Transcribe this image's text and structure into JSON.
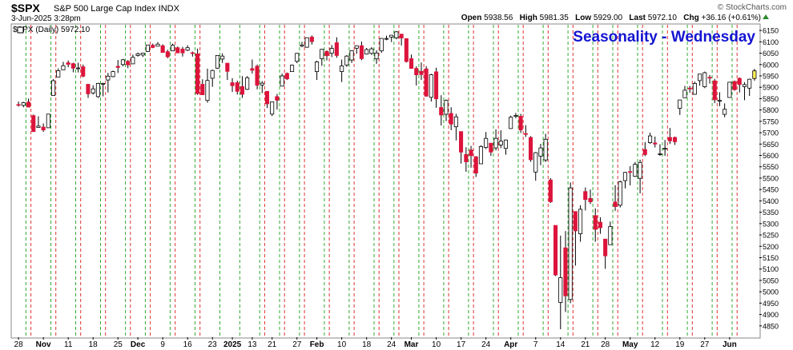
{
  "header": {
    "symbol": "$SPX",
    "description": "S&P 500 Large Cap Index  INDX",
    "watermark": "© StockCharts.com",
    "datetime": "3-Jun-2025 3:28pm",
    "open_label": "Open",
    "open_value": "5938.56",
    "high_label": "High",
    "high_value": "5981.35",
    "low_label": "Low",
    "low_value": "5929.00",
    "last_label": "Last",
    "last_value": "5972.10",
    "chg_label": "Chg",
    "chg_value": "+36.16 (+0.61%)"
  },
  "chart_data": {
    "type": "candlestick",
    "title": "Seasonality - Wednesday",
    "legend": "$SPX (Daily) 5972.10",
    "ylim": [
      4800,
      6175
    ],
    "y_ticks": [
      4850,
      4900,
      4950,
      5000,
      5050,
      5100,
      5150,
      5200,
      5250,
      5300,
      5350,
      5400,
      5450,
      5500,
      5550,
      5600,
      5650,
      5700,
      5750,
      5800,
      5850,
      5900,
      5950,
      6000,
      6050,
      6100,
      6150
    ],
    "x_tick_labels": [
      "28",
      "Nov",
      "11",
      "18",
      "25",
      "Dec",
      "9",
      "16",
      "23",
      "2025",
      "13",
      "21",
      "27",
      "Feb",
      "10",
      "18",
      "24",
      "Mar",
      "10",
      "17",
      "24",
      "Apr",
      "7",
      "14",
      "21",
      "28",
      "May",
      "12",
      "19",
      "27",
      "Jun"
    ],
    "grid": "dashed vertical lines: green before Wednesday sessions, red after Wednesday sessions",
    "colors": {
      "up": "#ffffff",
      "down": "#dc143c",
      "outline": "#000000",
      "grid_red": "#dd3333",
      "grid_green": "#33aa33",
      "title": "#1414d2",
      "last_highlight": "#ffef5a"
    },
    "candles": [
      {
        "d": "2024-10-28",
        "o": 5824,
        "h": 5837,
        "l": 5815,
        "c": 5823
      },
      {
        "d": "2024-10-29",
        "o": 5820,
        "h": 5836,
        "l": 5812,
        "c": 5832
      },
      {
        "d": "2024-10-30",
        "o": 5835,
        "h": 5850,
        "l": 5812,
        "c": 5813
      },
      {
        "d": "2024-10-31",
        "o": 5775,
        "h": 5780,
        "l": 5703,
        "c": 5705
      },
      {
        "d": "2024-11-01",
        "o": 5723,
        "h": 5772,
        "l": 5723,
        "c": 5729
      },
      {
        "d": "2024-11-04",
        "o": 5725,
        "h": 5741,
        "l": 5704,
        "c": 5712
      },
      {
        "d": "2024-11-05",
        "o": 5722,
        "h": 5783,
        "l": 5722,
        "c": 5782
      },
      {
        "d": "2024-11-06",
        "o": 5864,
        "h": 5936,
        "l": 5864,
        "c": 5929
      },
      {
        "d": "2024-11-07",
        "o": 5945,
        "h": 5983,
        "l": 5945,
        "c": 5973
      },
      {
        "d": "2024-11-08",
        "o": 5977,
        "h": 6012,
        "l": 5977,
        "c": 5995
      },
      {
        "d": "2024-11-11",
        "o": 6008,
        "h": 6018,
        "l": 5988,
        "c": 6001
      },
      {
        "d": "2024-11-12",
        "o": 6004,
        "h": 6008,
        "l": 5966,
        "c": 5984
      },
      {
        "d": "2024-11-13",
        "o": 5985,
        "h": 6008,
        "l": 5965,
        "c": 5985
      },
      {
        "d": "2024-11-14",
        "o": 5990,
        "h": 6000,
        "l": 5944,
        "c": 5949
      },
      {
        "d": "2024-11-15",
        "o": 5913,
        "h": 5915,
        "l": 5853,
        "c": 5871
      },
      {
        "d": "2024-11-18",
        "o": 5875,
        "h": 5909,
        "l": 5868,
        "c": 5893
      },
      {
        "d": "2024-11-19",
        "o": 5859,
        "h": 5920,
        "l": 5853,
        "c": 5917
      },
      {
        "d": "2024-11-20",
        "o": 5917,
        "h": 5920,
        "l": 5860,
        "c": 5917
      },
      {
        "d": "2024-11-21",
        "o": 5932,
        "h": 5963,
        "l": 5877,
        "c": 5949
      },
      {
        "d": "2024-11-22",
        "o": 5947,
        "h": 5973,
        "l": 5944,
        "c": 5969
      },
      {
        "d": "2024-11-25",
        "o": 5992,
        "h": 6020,
        "l": 5963,
        "c": 5987
      },
      {
        "d": "2024-11-26",
        "o": 6000,
        "h": 6025,
        "l": 5992,
        "c": 6021
      },
      {
        "d": "2024-11-27",
        "o": 6014,
        "h": 6020,
        "l": 5984,
        "c": 5999
      },
      {
        "d": "2024-11-29",
        "o": 6003,
        "h": 6044,
        "l": 6003,
        "c": 6032
      },
      {
        "d": "2024-12-02",
        "o": 6040,
        "h": 6053,
        "l": 6035,
        "c": 6047
      },
      {
        "d": "2024-12-03",
        "o": 6042,
        "h": 6052,
        "l": 6033,
        "c": 6050
      },
      {
        "d": "2024-12-04",
        "o": 6057,
        "h": 6087,
        "l": 6055,
        "c": 6086
      },
      {
        "d": "2024-12-05",
        "o": 6085,
        "h": 6092,
        "l": 6072,
        "c": 6075
      },
      {
        "d": "2024-12-06",
        "o": 6081,
        "h": 6099,
        "l": 6080,
        "c": 6090
      },
      {
        "d": "2024-12-09",
        "o": 6083,
        "h": 6089,
        "l": 6053,
        "c": 6053
      },
      {
        "d": "2024-12-10",
        "o": 6057,
        "h": 6065,
        "l": 6028,
        "c": 6034
      },
      {
        "d": "2024-12-11",
        "o": 6060,
        "h": 6092,
        "l": 6060,
        "c": 6085
      },
      {
        "d": "2024-12-12",
        "o": 6074,
        "h": 6079,
        "l": 6051,
        "c": 6051
      },
      {
        "d": "2024-12-13",
        "o": 6068,
        "h": 6078,
        "l": 6035,
        "c": 6051
      },
      {
        "d": "2024-12-16",
        "o": 6063,
        "h": 6085,
        "l": 6059,
        "c": 6074
      },
      {
        "d": "2024-12-17",
        "o": 6052,
        "h": 6057,
        "l": 6035,
        "c": 6050
      },
      {
        "d": "2024-12-18",
        "o": 6047,
        "h": 6070,
        "l": 5867,
        "c": 5872
      },
      {
        "d": "2024-12-19",
        "o": 5913,
        "h": 5935,
        "l": 5866,
        "c": 5867
      },
      {
        "d": "2024-12-20",
        "o": 5842,
        "h": 5982,
        "l": 5832,
        "c": 5930
      },
      {
        "d": "2024-12-23",
        "o": 5940,
        "h": 5978,
        "l": 5902,
        "c": 5974
      },
      {
        "d": "2024-12-24",
        "o": 5984,
        "h": 6041,
        "l": 5981,
        "c": 6040
      },
      {
        "d": "2024-12-26",
        "o": 6024,
        "h": 6049,
        "l": 6007,
        "c": 6037
      },
      {
        "d": "2024-12-27",
        "o": 6006,
        "h": 6007,
        "l": 5932,
        "c": 5970
      },
      {
        "d": "2024-12-30",
        "o": 5920,
        "h": 5940,
        "l": 5879,
        "c": 5907
      },
      {
        "d": "2024-12-31",
        "o": 5920,
        "h": 5929,
        "l": 5868,
        "c": 5882
      },
      {
        "d": "2025-01-02",
        "o": 5903,
        "h": 5949,
        "l": 5853,
        "c": 5869
      },
      {
        "d": "2025-01-03",
        "o": 5891,
        "h": 5949,
        "l": 5888,
        "c": 5942
      },
      {
        "d": "2025-01-06",
        "o": 5982,
        "h": 6022,
        "l": 5960,
        "c": 5975
      },
      {
        "d": "2025-01-07",
        "o": 5993,
        "h": 6000,
        "l": 5891,
        "c": 5909
      },
      {
        "d": "2025-01-08",
        "o": 5910,
        "h": 5927,
        "l": 5874,
        "c": 5918
      },
      {
        "d": "2025-01-10",
        "o": 5882,
        "h": 5882,
        "l": 5809,
        "c": 5827
      },
      {
        "d": "2025-01-13",
        "o": 5782,
        "h": 5837,
        "l": 5773,
        "c": 5836
      },
      {
        "d": "2025-01-14",
        "o": 5859,
        "h": 5871,
        "l": 5802,
        "c": 5843
      },
      {
        "d": "2025-01-15",
        "o": 5905,
        "h": 5960,
        "l": 5905,
        "c": 5950
      },
      {
        "d": "2025-01-16",
        "o": 5961,
        "h": 5965,
        "l": 5932,
        "c": 5937
      },
      {
        "d": "2025-01-17",
        "o": 5969,
        "h": 6000,
        "l": 5969,
        "c": 5997
      },
      {
        "d": "2025-01-21",
        "o": 6014,
        "h": 6051,
        "l": 6006,
        "c": 6049
      },
      {
        "d": "2025-01-22",
        "o": 6081,
        "h": 6100,
        "l": 6076,
        "c": 6086
      },
      {
        "d": "2025-01-23",
        "o": 6076,
        "h": 6118,
        "l": 6074,
        "c": 6118
      },
      {
        "d": "2025-01-24",
        "o": 6121,
        "h": 6128,
        "l": 6088,
        "c": 6101
      },
      {
        "d": "2025-01-27",
        "o": 5969,
        "h": 6017,
        "l": 5932,
        "c": 6012
      },
      {
        "d": "2025-01-28",
        "o": 6026,
        "h": 6069,
        "l": 5994,
        "c": 6067
      },
      {
        "d": "2025-01-29",
        "o": 6058,
        "h": 6062,
        "l": 6018,
        "c": 6039
      },
      {
        "d": "2025-01-30",
        "o": 6050,
        "h": 6086,
        "l": 6033,
        "c": 6071
      },
      {
        "d": "2025-01-31",
        "o": 6096,
        "h": 6120,
        "l": 6030,
        "c": 6040
      },
      {
        "d": "2025-02-03",
        "o": 5969,
        "h": 6022,
        "l": 5923,
        "c": 5994
      },
      {
        "d": "2025-02-04",
        "o": 5998,
        "h": 6042,
        "l": 5990,
        "c": 6037
      },
      {
        "d": "2025-02-05",
        "o": 6020,
        "h": 6062,
        "l": 6007,
        "c": 6061
      },
      {
        "d": "2025-02-06",
        "o": 6072,
        "h": 6084,
        "l": 6047,
        "c": 6083
      },
      {
        "d": "2025-02-07",
        "o": 6083,
        "h": 6101,
        "l": 6019,
        "c": 6026
      },
      {
        "d": "2025-02-10",
        "o": 6046,
        "h": 6073,
        "l": 6044,
        "c": 6066
      },
      {
        "d": "2025-02-11",
        "o": 6049,
        "h": 6076,
        "l": 6042,
        "c": 6069
      },
      {
        "d": "2025-02-12",
        "o": 6025,
        "h": 6063,
        "l": 6003,
        "c": 6051
      },
      {
        "d": "2025-02-13",
        "o": 6060,
        "h": 6116,
        "l": 6052,
        "c": 6115
      },
      {
        "d": "2025-02-14",
        "o": 6115,
        "h": 6127,
        "l": 6107,
        "c": 6115
      },
      {
        "d": "2025-02-18",
        "o": 6121,
        "h": 6129,
        "l": 6099,
        "c": 6129
      },
      {
        "d": "2025-02-19",
        "o": 6118,
        "h": 6147,
        "l": 6111,
        "c": 6144
      },
      {
        "d": "2025-02-20",
        "o": 6134,
        "h": 6134,
        "l": 6084,
        "c": 6117
      },
      {
        "d": "2025-02-21",
        "o": 6114,
        "h": 6115,
        "l": 6009,
        "c": 6013
      },
      {
        "d": "2025-02-24",
        "o": 6026,
        "h": 6044,
        "l": 5983,
        "c": 5983
      },
      {
        "d": "2025-02-25",
        "o": 5983,
        "h": 5992,
        "l": 5908,
        "c": 5955
      },
      {
        "d": "2025-02-26",
        "o": 5970,
        "h": 6009,
        "l": 5932,
        "c": 5956
      },
      {
        "d": "2025-02-27",
        "o": 5981,
        "h": 5993,
        "l": 5858,
        "c": 5861
      },
      {
        "d": "2025-02-28",
        "o": 5856,
        "h": 5959,
        "l": 5837,
        "c": 5955
      },
      {
        "d": "2025-03-03",
        "o": 5968,
        "h": 5986,
        "l": 5810,
        "c": 5849
      },
      {
        "d": "2025-03-04",
        "o": 5811,
        "h": 5865,
        "l": 5732,
        "c": 5778
      },
      {
        "d": "2025-03-05",
        "o": 5781,
        "h": 5846,
        "l": 5751,
        "c": 5842
      },
      {
        "d": "2025-03-06",
        "o": 5785,
        "h": 5812,
        "l": 5711,
        "c": 5738
      },
      {
        "d": "2025-03-07",
        "o": 5726,
        "h": 5783,
        "l": 5666,
        "c": 5770
      },
      {
        "d": "2025-03-10",
        "o": 5705,
        "h": 5706,
        "l": 5564,
        "c": 5615
      },
      {
        "d": "2025-03-11",
        "o": 5604,
        "h": 5636,
        "l": 5528,
        "c": 5572
      },
      {
        "d": "2025-03-12",
        "o": 5624,
        "h": 5642,
        "l": 5546,
        "c": 5599
      },
      {
        "d": "2025-03-13",
        "o": 5594,
        "h": 5597,
        "l": 5505,
        "c": 5522
      },
      {
        "d": "2025-03-14",
        "o": 5563,
        "h": 5645,
        "l": 5563,
        "c": 5639
      },
      {
        "d": "2025-03-17",
        "o": 5635,
        "h": 5703,
        "l": 5628,
        "c": 5675
      },
      {
        "d": "2025-03-18",
        "o": 5654,
        "h": 5655,
        "l": 5598,
        "c": 5615
      },
      {
        "d": "2025-03-19",
        "o": 5633,
        "h": 5715,
        "l": 5622,
        "c": 5675
      },
      {
        "d": "2025-03-20",
        "o": 5646,
        "h": 5711,
        "l": 5632,
        "c": 5663
      },
      {
        "d": "2025-03-21",
        "o": 5631,
        "h": 5670,
        "l": 5603,
        "c": 5668
      },
      {
        "d": "2025-03-24",
        "o": 5718,
        "h": 5775,
        "l": 5718,
        "c": 5768
      },
      {
        "d": "2025-03-25",
        "o": 5775,
        "h": 5787,
        "l": 5764,
        "c": 5776
      },
      {
        "d": "2025-03-26",
        "o": 5772,
        "h": 5783,
        "l": 5699,
        "c": 5712
      },
      {
        "d": "2025-03-27",
        "o": 5696,
        "h": 5733,
        "l": 5681,
        "c": 5693
      },
      {
        "d": "2025-03-28",
        "o": 5679,
        "h": 5685,
        "l": 5572,
        "c": 5581
      },
      {
        "d": "2025-03-31",
        "o": 5527,
        "h": 5615,
        "l": 5489,
        "c": 5612
      },
      {
        "d": "2025-04-01",
        "o": 5597,
        "h": 5651,
        "l": 5557,
        "c": 5633
      },
      {
        "d": "2025-04-02",
        "o": 5580,
        "h": 5695,
        "l": 5571,
        "c": 5671
      },
      {
        "d": "2025-04-03",
        "o": 5492,
        "h": 5500,
        "l": 5391,
        "c": 5396
      },
      {
        "d": "2025-04-04",
        "o": 5292,
        "h": 5292,
        "l": 5069,
        "c": 5074
      },
      {
        "d": "2025-04-07",
        "o": 4953,
        "h": 5247,
        "l": 4835,
        "c": 5062
      },
      {
        "d": "2025-04-08",
        "o": 5193,
        "h": 5267,
        "l": 4911,
        "c": 4982
      },
      {
        "d": "2025-04-09",
        "o": 4966,
        "h": 5481,
        "l": 4950,
        "c": 5457
      },
      {
        "d": "2025-04-10",
        "o": 5353,
        "h": 5353,
        "l": 5115,
        "c": 5268
      },
      {
        "d": "2025-04-11",
        "o": 5255,
        "h": 5381,
        "l": 5220,
        "c": 5363
      },
      {
        "d": "2025-04-14",
        "o": 5441,
        "h": 5459,
        "l": 5358,
        "c": 5406
      },
      {
        "d": "2025-04-15",
        "o": 5411,
        "h": 5450,
        "l": 5386,
        "c": 5396
      },
      {
        "d": "2025-04-16",
        "o": 5335,
        "h": 5367,
        "l": 5220,
        "c": 5275
      },
      {
        "d": "2025-04-17",
        "o": 5306,
        "h": 5328,
        "l": 5255,
        "c": 5282
      },
      {
        "d": "2025-04-21",
        "o": 5232,
        "h": 5232,
        "l": 5101,
        "c": 5158
      },
      {
        "d": "2025-04-22",
        "o": 5207,
        "h": 5309,
        "l": 5207,
        "c": 5287
      },
      {
        "d": "2025-04-23",
        "o": 5395,
        "h": 5469,
        "l": 5356,
        "c": 5375
      },
      {
        "d": "2025-04-24",
        "o": 5381,
        "h": 5489,
        "l": 5371,
        "c": 5484
      },
      {
        "d": "2025-04-25",
        "o": 5489,
        "h": 5528,
        "l": 5455,
        "c": 5525
      },
      {
        "d": "2025-04-28",
        "o": 5529,
        "h": 5553,
        "l": 5468,
        "c": 5528
      },
      {
        "d": "2025-04-29",
        "o": 5508,
        "h": 5571,
        "l": 5505,
        "c": 5561
      },
      {
        "d": "2025-04-30",
        "o": 5499,
        "h": 5581,
        "l": 5433,
        "c": 5569
      },
      {
        "d": "2025-05-01",
        "o": 5626,
        "h": 5659,
        "l": 5597,
        "c": 5604
      },
      {
        "d": "2025-05-02",
        "o": 5656,
        "h": 5700,
        "l": 5651,
        "c": 5686
      },
      {
        "d": "2025-05-05",
        "o": 5655,
        "h": 5683,
        "l": 5635,
        "c": 5650
      },
      {
        "d": "2025-05-06",
        "o": 5605,
        "h": 5649,
        "l": 5598,
        "c": 5607
      },
      {
        "d": "2025-05-07",
        "o": 5630,
        "h": 5668,
        "l": 5598,
        "c": 5631
      },
      {
        "d": "2025-05-08",
        "o": 5679,
        "h": 5721,
        "l": 5650,
        "c": 5664
      },
      {
        "d": "2025-05-09",
        "o": 5679,
        "h": 5683,
        "l": 5646,
        "c": 5660
      },
      {
        "d": "2025-05-12",
        "o": 5807,
        "h": 5845,
        "l": 5778,
        "c": 5844
      },
      {
        "d": "2025-05-13",
        "o": 5854,
        "h": 5906,
        "l": 5853,
        "c": 5887
      },
      {
        "d": "2025-05-14",
        "o": 5896,
        "h": 5906,
        "l": 5876,
        "c": 5893
      },
      {
        "d": "2025-05-15",
        "o": 5869,
        "h": 5925,
        "l": 5867,
        "c": 5917
      },
      {
        "d": "2025-05-16",
        "o": 5929,
        "h": 5958,
        "l": 5907,
        "c": 5958
      },
      {
        "d": "2025-05-19",
        "o": 5902,
        "h": 5969,
        "l": 5896,
        "c": 5964
      },
      {
        "d": "2025-05-20",
        "o": 5944,
        "h": 5954,
        "l": 5916,
        "c": 5940
      },
      {
        "d": "2025-05-21",
        "o": 5928,
        "h": 5937,
        "l": 5830,
        "c": 5845
      },
      {
        "d": "2025-05-22",
        "o": 5841,
        "h": 5878,
        "l": 5817,
        "c": 5842
      },
      {
        "d": "2025-05-23",
        "o": 5781,
        "h": 5829,
        "l": 5768,
        "c": 5803
      },
      {
        "d": "2025-05-27",
        "o": 5855,
        "h": 5924,
        "l": 5855,
        "c": 5922
      },
      {
        "d": "2025-05-28",
        "o": 5925,
        "h": 5930,
        "l": 5885,
        "c": 5889
      },
      {
        "d": "2025-05-29",
        "o": 5939,
        "h": 5944,
        "l": 5877,
        "c": 5912
      },
      {
        "d": "2025-05-30",
        "o": 5903,
        "h": 5922,
        "l": 5843,
        "c": 5912
      },
      {
        "d": "2025-06-02",
        "o": 5896,
        "h": 5938,
        "l": 5862,
        "c": 5935
      },
      {
        "d": "2025-06-03",
        "o": 5938.56,
        "h": 5981.35,
        "l": 5929,
        "c": 5972.1
      }
    ]
  }
}
